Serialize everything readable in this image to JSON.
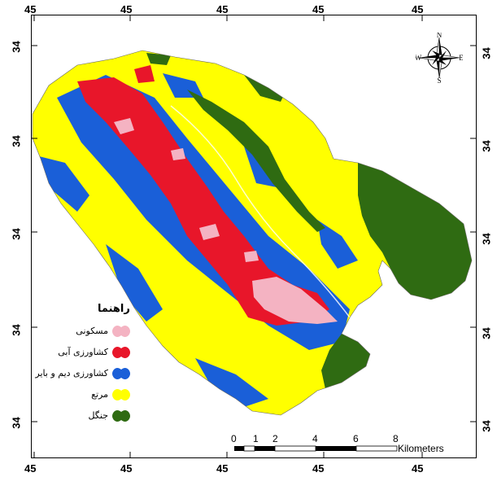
{
  "axes": {
    "top_ticks": [
      "45",
      "45",
      "45",
      "45",
      "45"
    ],
    "bottom_ticks": [
      "45",
      "45",
      "45",
      "45",
      "45"
    ],
    "left_ticks": [
      "34",
      "34",
      "34",
      "34",
      "34"
    ],
    "right_ticks": [
      "34",
      "34",
      "34",
      "34",
      "34"
    ]
  },
  "legend": {
    "title": "راهنما",
    "items": [
      {
        "label": "مسکونی",
        "color": "#f4b3c2"
      },
      {
        "label": "کشاورزی آبی",
        "color": "#e8162a"
      },
      {
        "label": "کشاورزی دیم و بایر",
        "color": "#1a5fd8"
      },
      {
        "label": "مرتع",
        "color": "#ffff00"
      },
      {
        "label": "جنگل",
        "color": "#2f6b12"
      }
    ]
  },
  "scale_bar": {
    "labels": [
      "0",
      "1",
      "2",
      "4",
      "6",
      "8"
    ],
    "units": "Kilometers"
  },
  "north_arrow": {
    "n": "N",
    "s": "S",
    "e": "E",
    "w": "W"
  }
}
